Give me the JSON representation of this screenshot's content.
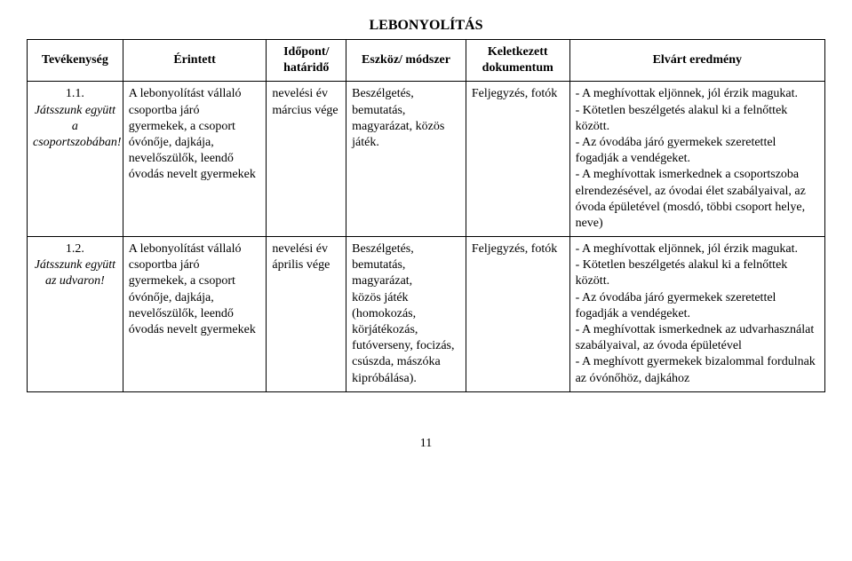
{
  "title": "LEBONYOLÍTÁS",
  "headers": {
    "activity": "Tevékenység",
    "involved": "Érintett",
    "time": "Időpont/ határidő",
    "method": "Eszköz/ módszer",
    "document": "Keletkezett dokumentum",
    "result": "Elvárt eredmény"
  },
  "rows": [
    {
      "activity_num": "1.1.",
      "activity_label": "Játsszunk együtt a csoportszobában!",
      "involved": "A lebonyolítást vállaló csoportba járó gyermekek, a csoport óvónője, dajkája, nevelőszülők, leendő óvodás nevelt gyermekek",
      "time": "nevelési év március vége",
      "method": "Beszélgetés, bemutatás, magyarázat, közös játék.",
      "document": "Feljegyzés, fotók",
      "result": "- A meghívottak eljönnek, jól érzik magukat.\n- Kötetlen beszélgetés alakul ki a felnőttek között.\n- Az óvodába járó gyermekek szeretettel fogadják a vendégeket.\n- A meghívottak ismerkednek a csoportszoba elrendezésével, az óvodai élet szabályaival, az óvoda épületével (mosdó, többi csoport helye, neve)"
    },
    {
      "activity_num": "1.2.",
      "activity_label": "Játsszunk együtt az udvaron!",
      "involved": "A lebonyolítást vállaló csoportba járó gyermekek, a csoport óvónője, dajkája, nevelőszülők, leendő óvodás nevelt gyermekek",
      "time": "nevelési év április vége",
      "method": "Beszélgetés, bemutatás, magyarázat,\n közös játék (homokozás, körjátékozás, futóverseny, focizás, csúszda, mászóka kipróbálása).",
      "document": "Feljegyzés, fotók",
      "result": "- A meghívottak eljönnek, jól érzik magukat.\n- Kötetlen beszélgetés alakul ki a felnőttek között.\n- Az óvodába járó gyermekek szeretettel fogadják a vendégeket.\n- A meghívottak ismerkednek az udvarhasználat szabályaival, az óvoda épületével\n- A meghívott gyermekek bizalommal fordulnak az óvónőhöz, dajkához"
    }
  ],
  "page_number": "11"
}
